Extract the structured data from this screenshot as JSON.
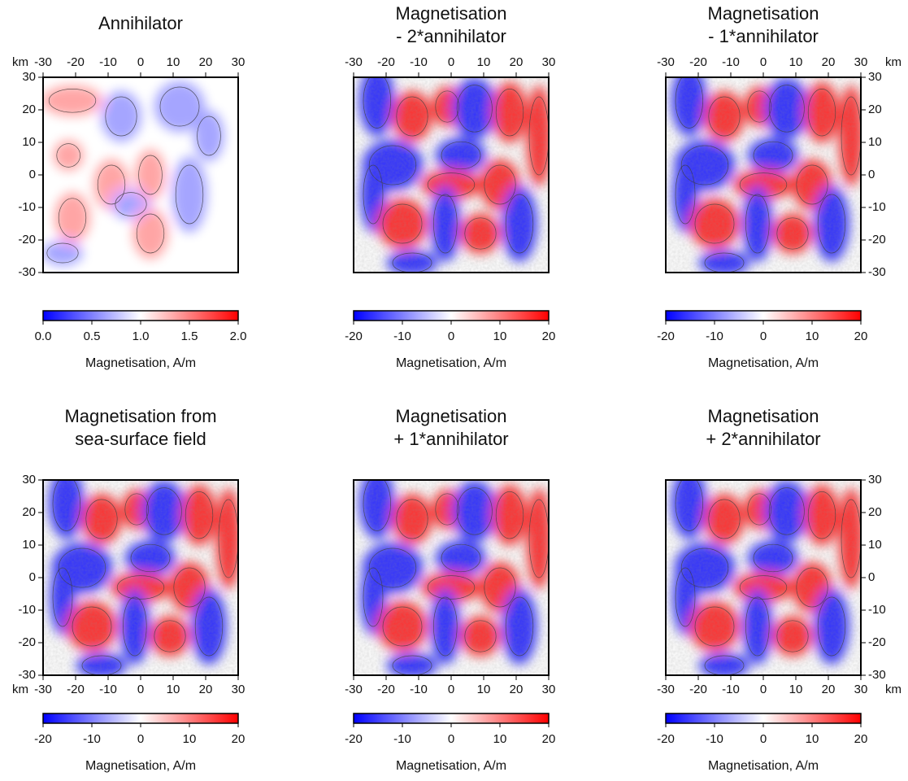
{
  "chart_data": [
    {
      "type": "map",
      "title": [
        "Annihilator"
      ],
      "axis_label": "km",
      "x_axis": "top",
      "y_axis": "left",
      "xlim": [
        -30,
        30
      ],
      "ylim": [
        -30,
        30
      ],
      "xticks": [
        -30,
        -20,
        -10,
        0,
        10,
        20,
        30
      ],
      "yticks": [
        -30,
        -20,
        -10,
        0,
        10,
        20,
        30
      ],
      "colormap": [
        "#0000ff",
        "#ffffff",
        "#ff0000"
      ],
      "colorbar": {
        "lim": [
          0,
          2
        ],
        "ticks": [
          {
            "value": 0,
            "label": "0.0"
          },
          {
            "value": 0.5,
            "label": "0.5"
          },
          {
            "value": 1,
            "label": "1.0"
          },
          {
            "value": 1.5,
            "label": "1.5"
          },
          {
            "value": 2,
            "label": "2.0"
          }
        ],
        "label": "Magnetisation, A/m"
      }
    },
    {
      "type": "map",
      "title": [
        "Magnetisation",
        "- 2*annihilator"
      ],
      "x_axis": "top",
      "xlim": [
        -30,
        30
      ],
      "ylim": [
        -30,
        30
      ],
      "xticks": [
        -30,
        -20,
        -10,
        0,
        10,
        20,
        30
      ],
      "colormap": [
        "#0000ff",
        "#ffffff",
        "#ff0000"
      ],
      "colorbar": {
        "lim": [
          -20,
          20
        ],
        "ticks": [
          -20,
          -10,
          0,
          10,
          20
        ],
        "label": "Magnetisation, A/m"
      }
    },
    {
      "type": "map",
      "title": [
        "Magnetisation",
        "- 1*annihilator"
      ],
      "axis_label": "km",
      "x_axis": "top",
      "y_axis": "right",
      "xlim": [
        -30,
        30
      ],
      "ylim": [
        -30,
        30
      ],
      "xticks": [
        -30,
        -20,
        -10,
        0,
        10,
        20,
        30
      ],
      "yticks": [
        -30,
        -20,
        -10,
        0,
        10,
        20,
        30
      ],
      "colormap": [
        "#0000ff",
        "#ffffff",
        "#ff0000"
      ],
      "colorbar": {
        "lim": [
          -20,
          20
        ],
        "ticks": [
          -20,
          -10,
          0,
          10,
          20
        ],
        "label": "Magnetisation, A/m"
      }
    },
    {
      "type": "map",
      "title": [
        "Magnetisation from",
        "sea-surface field"
      ],
      "axis_label": "km",
      "x_axis": "bottom",
      "y_axis": "left",
      "xlim": [
        -30,
        30
      ],
      "ylim": [
        -30,
        30
      ],
      "xticks": [
        -30,
        -20,
        -10,
        0,
        10,
        20,
        30
      ],
      "yticks": [
        -30,
        -20,
        -10,
        0,
        10,
        20,
        30
      ],
      "colormap": [
        "#0000ff",
        "#ffffff",
        "#ff0000"
      ],
      "colorbar": {
        "lim": [
          -20,
          20
        ],
        "ticks": [
          -20,
          -10,
          0,
          10,
          20
        ],
        "label": "Magnetisation, A/m"
      }
    },
    {
      "type": "map",
      "title": [
        "Magnetisation",
        "+ 1*annihilator"
      ],
      "x_axis": "bottom",
      "xlim": [
        -30,
        30
      ],
      "ylim": [
        -30,
        30
      ],
      "xticks": [
        -30,
        -20,
        -10,
        0,
        10,
        20,
        30
      ],
      "colormap": [
        "#0000ff",
        "#ffffff",
        "#ff0000"
      ],
      "colorbar": {
        "lim": [
          -20,
          20
        ],
        "ticks": [
          -20,
          -10,
          0,
          10,
          20
        ],
        "label": "Magnetisation, A/m"
      }
    },
    {
      "type": "map",
      "title": [
        "Magnetisation",
        "+ 2*annihilator"
      ],
      "axis_label": "km",
      "x_axis": "bottom",
      "y_axis": "right",
      "xlim": [
        -30,
        30
      ],
      "ylim": [
        -30,
        30
      ],
      "xticks": [
        -30,
        -20,
        -10,
        0,
        10,
        20,
        30
      ],
      "yticks": [
        -30,
        -20,
        -10,
        0,
        10,
        20,
        30
      ],
      "colormap": [
        "#0000ff",
        "#ffffff",
        "#ff0000"
      ],
      "colorbar": {
        "lim": [
          -20,
          20
        ],
        "ticks": [
          -20,
          -10,
          0,
          10,
          20
        ],
        "label": "Magnetisation, A/m"
      }
    }
  ]
}
